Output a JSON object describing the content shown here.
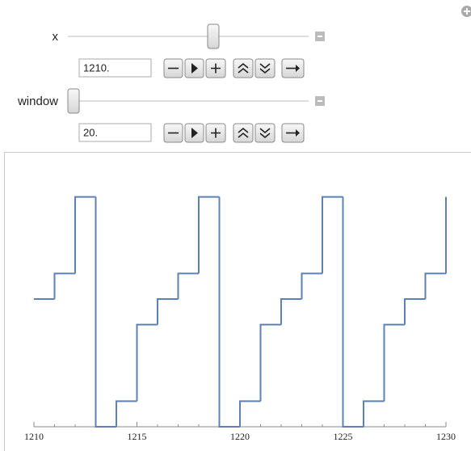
{
  "controls": [
    {
      "label": "x",
      "field": "1210."
    },
    {
      "label": "window",
      "field": "20."
    }
  ],
  "chart_data": {
    "type": "line",
    "step": "post",
    "color": "#5e81b5",
    "x": [
      1210,
      1211,
      1212,
      1213,
      1214,
      1215,
      1216,
      1217,
      1218,
      1219,
      1220,
      1221,
      1222,
      1223,
      1224,
      1225,
      1226,
      1227,
      1228,
      1229,
      1230
    ],
    "values": [
      5,
      6,
      9,
      0,
      1,
      4,
      5,
      6,
      9,
      0,
      1,
      4,
      5,
      6,
      9,
      0,
      1,
      4,
      5,
      6,
      9
    ],
    "xlim": [
      1210,
      1230
    ],
    "xticks": [
      1210,
      1215,
      1220,
      1225,
      1230
    ],
    "xminorticks": [
      1211,
      1212,
      1213,
      1214,
      1216,
      1217,
      1218,
      1219,
      1221,
      1222,
      1223,
      1224,
      1226,
      1227,
      1228,
      1229
    ],
    "ylim": [
      0,
      10
    ]
  }
}
